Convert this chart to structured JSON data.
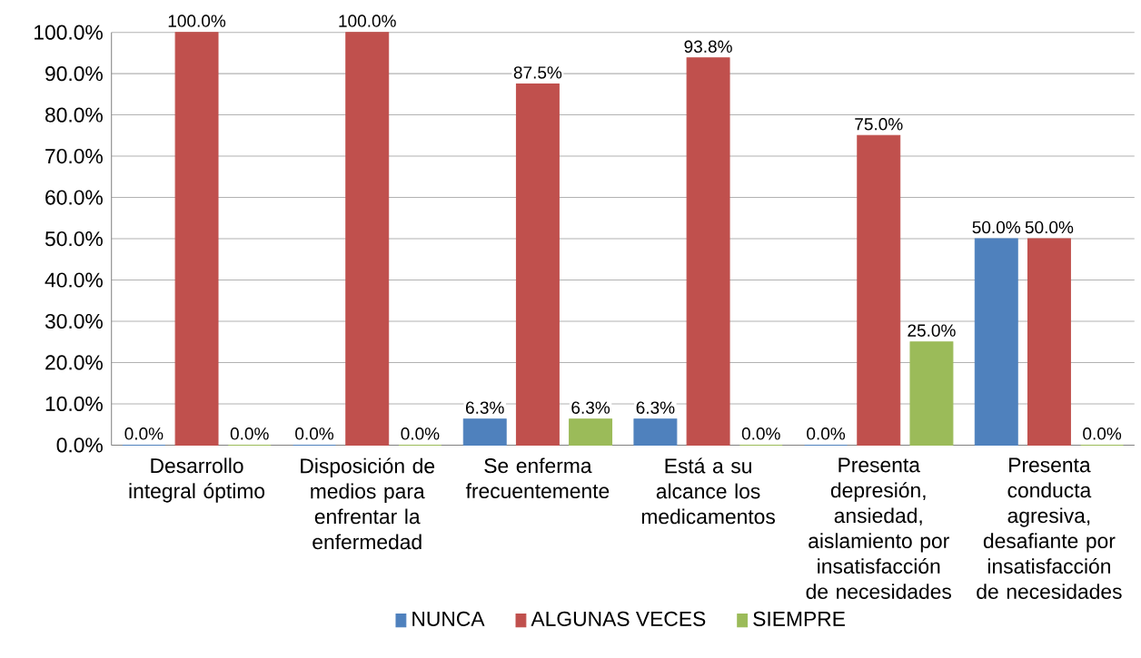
{
  "chart_data": {
    "type": "bar",
    "categories": [
      "Desarrollo integral óptimo",
      "Disposición de medios para enfrentar la enfermedad",
      "Se enferma frecuentemente",
      "Está a su alcance los medicamentos",
      "Presenta depresión, ansiedad, aislamiento por insatisfacción de necesidades",
      "Presenta conducta agresiva, desafiante por insatisfacción de necesidades"
    ],
    "series": [
      {
        "name": "NUNCA",
        "color": "#4f81bd",
        "values": [
          0,
          0,
          6.3,
          6.3,
          0,
          50
        ],
        "value_labels": [
          "0.0%",
          "0.0%",
          "6.3%",
          "6.3%",
          "0.0%",
          "50.0%"
        ]
      },
      {
        "name": "ALGUNAS VECES",
        "color": "#c0504d",
        "values": [
          100,
          100,
          87.5,
          93.8,
          75,
          50
        ],
        "value_labels": [
          "100.0%",
          "100.0%",
          "87.5%",
          "93.8%",
          "75.0%",
          "50.0%"
        ]
      },
      {
        "name": "SIEMPRE",
        "color": "#9bbb59",
        "values": [
          0,
          0,
          6.3,
          0,
          25,
          0
        ],
        "value_labels": [
          "0.0%",
          "0.0%",
          "6.3%",
          "0.0%",
          "25.0%",
          "0.0%"
        ]
      }
    ],
    "ylim": [
      0,
      100
    ],
    "yticks": [
      {
        "value": 0,
        "label": "0.0%"
      },
      {
        "value": 10,
        "label": "10.0%"
      },
      {
        "value": 20,
        "label": "20.0%"
      },
      {
        "value": 30,
        "label": "30.0%"
      },
      {
        "value": 40,
        "label": "40.0%"
      },
      {
        "value": 50,
        "label": "50.0%"
      },
      {
        "value": 60,
        "label": "60.0%"
      },
      {
        "value": 70,
        "label": "70.0%"
      },
      {
        "value": 80,
        "label": "80.0%"
      },
      {
        "value": 90,
        "label": "90.0%"
      },
      {
        "value": 100,
        "label": "100.0%"
      }
    ],
    "grid": "y",
    "legend": "bottom"
  }
}
